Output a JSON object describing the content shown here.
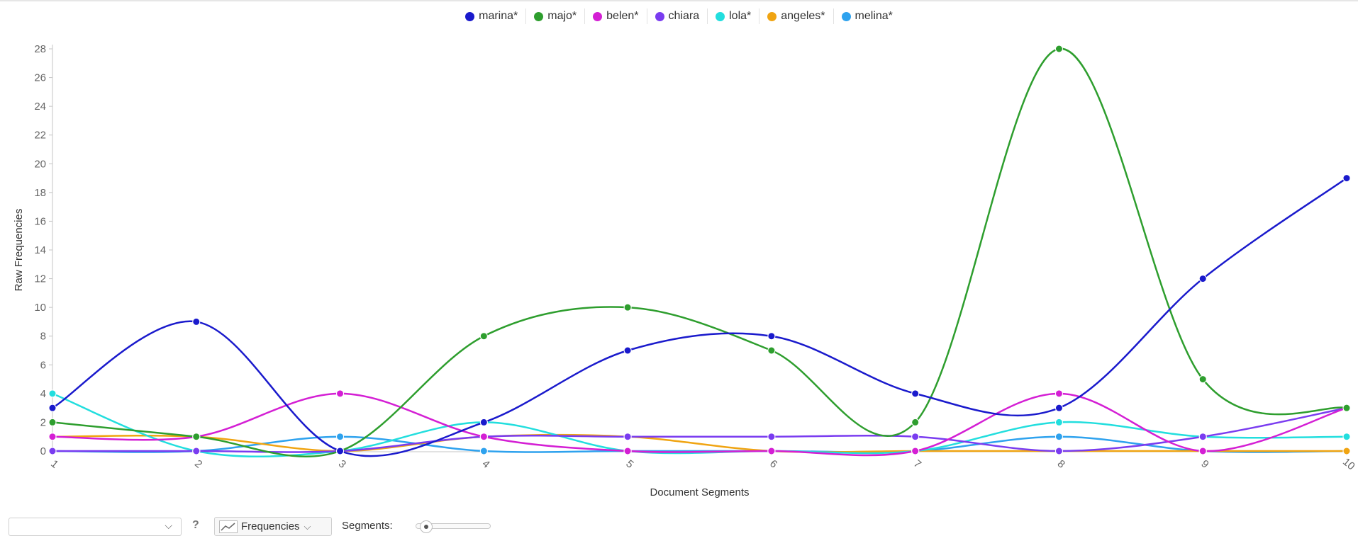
{
  "chart_data": {
    "type": "line",
    "xlabel": "Document Segments",
    "ylabel": "Raw Frequencies",
    "x": [
      1,
      2,
      3,
      4,
      5,
      6,
      7,
      8,
      9,
      10
    ],
    "ylim": [
      0,
      28
    ],
    "yticks": [
      0,
      2,
      4,
      6,
      8,
      10,
      12,
      14,
      16,
      18,
      20,
      22,
      24,
      26,
      28
    ],
    "grid": false,
    "legend": "top-center",
    "series": [
      {
        "name": "marina*",
        "color": "#1a1acc",
        "values": [
          3,
          9,
          0,
          2,
          7,
          8,
          4,
          3,
          12,
          19
        ]
      },
      {
        "name": "majo*",
        "color": "#2e9e2e",
        "values": [
          2,
          1,
          0,
          8,
          10,
          7,
          2,
          28,
          5,
          3
        ]
      },
      {
        "name": "belen*",
        "color": "#d41fd4",
        "values": [
          1,
          1,
          4,
          1,
          0,
          0,
          0,
          4,
          0,
          3
        ]
      },
      {
        "name": "chiara",
        "color": "#7a3cf0",
        "values": [
          0,
          0,
          0,
          1,
          1,
          1,
          1,
          0,
          1,
          3
        ]
      },
      {
        "name": "lola*",
        "color": "#22dede",
        "values": [
          4,
          0,
          0,
          2,
          0,
          0,
          0,
          2,
          1,
          1
        ]
      },
      {
        "name": "angeles*",
        "color": "#f0a412",
        "values": [
          1,
          1,
          0,
          1,
          1,
          0,
          0,
          0,
          0,
          0
        ]
      },
      {
        "name": "melina*",
        "color": "#2ea2ee",
        "values": [
          0,
          0,
          1,
          0,
          0,
          0,
          0,
          1,
          0,
          0
        ]
      }
    ]
  },
  "toolbar": {
    "combo_value": "",
    "help_glyph": "?",
    "chevron_glyph": "⌵",
    "frequencies_label": "Frequencies",
    "segments_label": "Segments:",
    "slider_value": 0
  }
}
